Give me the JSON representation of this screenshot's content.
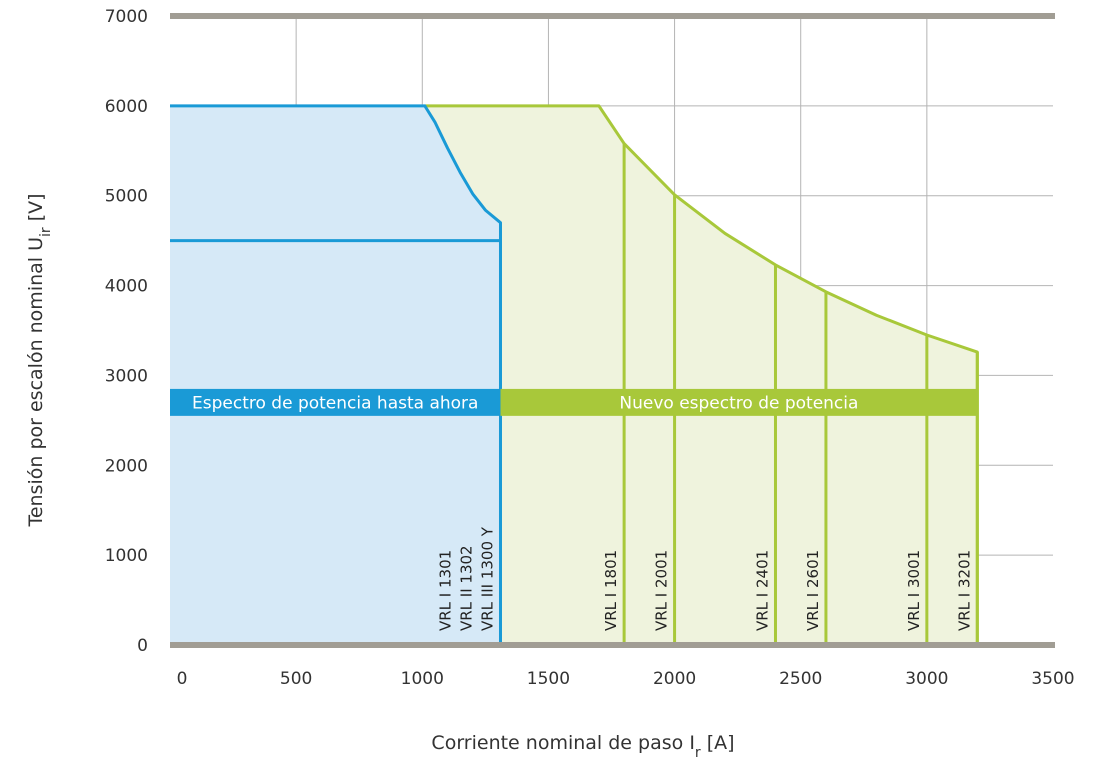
{
  "chart_data": {
    "type": "area",
    "xlabel": "Corriente nominal de paso",
    "xlabel_symbol": "I",
    "xlabel_sub": "r",
    "xlabel_unit": "[A]",
    "ylabel": "Tensión por escalón nominal",
    "ylabel_symbol": "U",
    "ylabel_sub": "ir",
    "ylabel_unit": "[V]",
    "xlim": [
      0,
      3500
    ],
    "ylim": [
      0,
      7000
    ],
    "x_ticks": [
      "0",
      "500",
      "1000",
      "1500",
      "2000",
      "2500",
      "3000",
      "3500"
    ],
    "y_ticks": [
      "0",
      "1000",
      "2000",
      "3000",
      "4000",
      "5000",
      "6000",
      "7000"
    ],
    "grid": true,
    "colors": {
      "blue": "#1a9ad6",
      "blue_fill": "#d6e9f7",
      "green": "#a8c83a",
      "green_fill": "#eff3dd",
      "axis": "#a19d94",
      "grid": "#b4b4b4"
    },
    "series": [
      {
        "name": "Espectro de potencia hasta ahora",
        "color": "#1a9ad6",
        "x_range": [
          0,
          1310
        ],
        "boundary": [
          {
            "x": 0,
            "y": 6000
          },
          {
            "x": 1010,
            "y": 6000
          },
          {
            "x": 1050,
            "y": 5820
          },
          {
            "x": 1100,
            "y": 5530
          },
          {
            "x": 1150,
            "y": 5260
          },
          {
            "x": 1200,
            "y": 5020
          },
          {
            "x": 1250,
            "y": 4840
          },
          {
            "x": 1310,
            "y": 4700
          },
          {
            "x": 1310,
            "y": 0
          }
        ],
        "inner_level": 4500
      },
      {
        "name": "Nuevo espectro de potencia",
        "color": "#a8c83a",
        "x_range": [
          1010,
          3200
        ],
        "boundary": [
          {
            "x": 1010,
            "y": 6000
          },
          {
            "x": 1700,
            "y": 6000
          },
          {
            "x": 1800,
            "y": 5580
          },
          {
            "x": 2000,
            "y": 5010
          },
          {
            "x": 2200,
            "y": 4580
          },
          {
            "x": 2400,
            "y": 4230
          },
          {
            "x": 2600,
            "y": 3930
          },
          {
            "x": 2800,
            "y": 3670
          },
          {
            "x": 3000,
            "y": 3450
          },
          {
            "x": 3200,
            "y": 3260
          },
          {
            "x": 3200,
            "y": 0
          }
        ]
      }
    ],
    "bands": [
      {
        "label": "Espectro de potencia hasta ahora",
        "x0": 0,
        "x1": 1310,
        "y0": 2550,
        "y1": 2850,
        "color": "#1a9ad6"
      },
      {
        "label": "Nuevo espectro de potencia",
        "x0": 1310,
        "x1": 3200,
        "y0": 2550,
        "y1": 2850,
        "color": "#a8c83a"
      }
    ],
    "models": [
      {
        "labels": [
          "VRL I 1301",
          "VRL II 1302",
          "VRL III 1300 Y"
        ],
        "x": 1310,
        "top": 4700,
        "color": "#1a9ad6"
      },
      {
        "labels": [
          "VRL I 1801"
        ],
        "x": 1800,
        "top": 5580,
        "color": "#a8c83a"
      },
      {
        "labels": [
          "VRL I 2001"
        ],
        "x": 2000,
        "top": 5010,
        "color": "#a8c83a"
      },
      {
        "labels": [
          "VRL I 2401"
        ],
        "x": 2400,
        "top": 4230,
        "color": "#a8c83a"
      },
      {
        "labels": [
          "VRL I 2601"
        ],
        "x": 2600,
        "top": 3930,
        "color": "#a8c83a"
      },
      {
        "labels": [
          "VRL I 3001"
        ],
        "x": 3000,
        "top": 3450,
        "color": "#a8c83a"
      },
      {
        "labels": [
          "VRL I 3201"
        ],
        "x": 3200,
        "top": 3260,
        "color": "#a8c83a"
      }
    ]
  }
}
